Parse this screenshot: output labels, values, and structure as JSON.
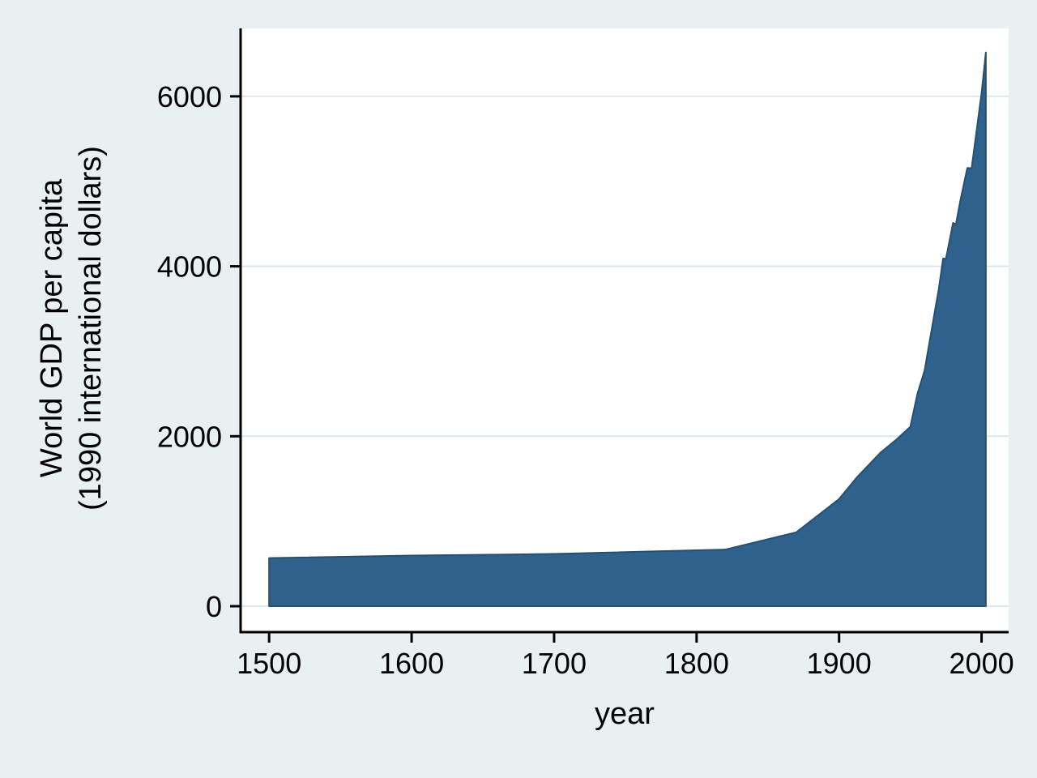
{
  "chart_data": {
    "type": "area",
    "title": "",
    "xlabel": "year",
    "ylabel": "World GDP per capita (1990 international dollars)",
    "x_ticks": [
      1500,
      1600,
      1700,
      1800,
      1900,
      2000
    ],
    "y_ticks": [
      0,
      2000,
      4000,
      6000
    ],
    "xlim": [
      1480,
      2019
    ],
    "ylim": [
      -305,
      6800
    ],
    "grid": "horizontal",
    "legend": "none",
    "series": [
      {
        "name": "World GDP per capita (1990 international dollars)",
        "baseline": 0,
        "x": [
          1500,
          1600,
          1700,
          1820,
          1870,
          1900,
          1913,
          1929,
          1940,
          1950,
          1955,
          1960,
          1965,
          1970,
          1973,
          1975,
          1980,
          1982,
          1985,
          1990,
          1993,
          1995,
          2000,
          2003
        ],
        "y": [
          566,
          596,
          615,
          666,
          870,
          1261,
          1526,
          1806,
          1958,
          2111,
          2500,
          2773,
          3257,
          3736,
          4091,
          4088,
          4511,
          4494,
          4764,
          5157,
          5154,
          5404,
          6038,
          6516
        ]
      }
    ],
    "colors": {
      "area_fill": "#2e618c",
      "area_stroke": "#27506f",
      "grid_line": "#dce9ec",
      "axis_line": "#000000",
      "tick_text": "#000000",
      "plot_background": "#ffffff",
      "page_background": "#e9f0f2"
    }
  },
  "labels": {
    "ylabel_line1": "World GDP per capita",
    "ylabel_line2": "(1990 international dollars)",
    "xlabel": "year"
  }
}
